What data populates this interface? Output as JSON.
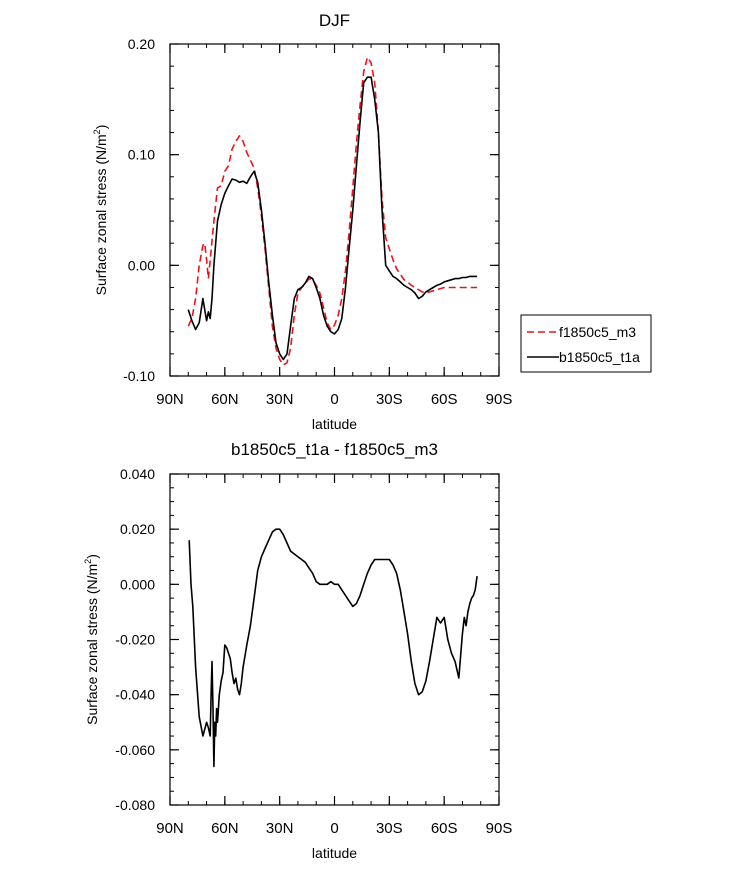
{
  "chart_data": [
    {
      "type": "line",
      "title": "DJF",
      "xlabel": "latitude",
      "ylabel": "Surface zonal stress (N/m",
      "ylabel_sup": "2",
      "ylabel_close": ")",
      "xlim": [
        90,
        -90
      ],
      "ylim": [
        -0.1,
        0.2
      ],
      "x_ticks": [
        90,
        60,
        30,
        0,
        -30,
        -60,
        -90
      ],
      "x_tick_labels": [
        "90N",
        "60N",
        "30N",
        "0",
        "30S",
        "60S",
        "90S"
      ],
      "y_ticks": [
        -0.1,
        0.0,
        0.1,
        0.2
      ],
      "y_tick_labels": [
        "-0.10",
        "0.00",
        "0.10",
        "0.20"
      ],
      "grid": false,
      "legend": "right",
      "series": [
        {
          "name": "f1850c5_m3",
          "color": "#e8141c",
          "dash": true,
          "x": [
            80,
            78,
            76,
            74,
            72,
            71,
            70,
            69,
            68,
            66,
            64,
            62,
            60,
            58,
            56,
            54,
            52,
            50,
            48,
            46,
            44,
            42,
            40,
            38,
            36,
            34,
            32,
            30,
            28,
            26,
            24,
            22,
            20,
            18,
            16,
            14,
            12,
            10,
            8,
            6,
            4,
            2,
            0,
            -2,
            -4,
            -6,
            -8,
            -10,
            -12,
            -14,
            -16,
            -18,
            -20,
            -22,
            -24,
            -26,
            -28,
            -30,
            -32,
            -34,
            -36,
            -38,
            -40,
            -42,
            -44,
            -46,
            -48,
            -50,
            -52,
            -54,
            -56,
            -58,
            -60,
            -62,
            -64,
            -66,
            -68,
            -70,
            -72,
            -74,
            -76,
            -78
          ],
          "values": [
            -0.055,
            -0.048,
            -0.03,
            0.0,
            0.018,
            0.02,
            0.005,
            -0.012,
            0.005,
            0.04,
            0.07,
            0.072,
            0.085,
            0.09,
            0.105,
            0.112,
            0.117,
            0.112,
            0.102,
            0.095,
            0.088,
            0.07,
            0.045,
            0.015,
            -0.02,
            -0.055,
            -0.075,
            -0.085,
            -0.09,
            -0.088,
            -0.075,
            -0.045,
            -0.025,
            -0.02,
            -0.017,
            -0.012,
            -0.013,
            -0.018,
            -0.025,
            -0.038,
            -0.052,
            -0.058,
            -0.054,
            -0.045,
            -0.03,
            -0.005,
            0.03,
            0.07,
            0.11,
            0.145,
            0.175,
            0.188,
            0.183,
            0.165,
            0.12,
            0.06,
            0.025,
            0.015,
            0.005,
            -0.003,
            -0.008,
            -0.013,
            -0.015,
            -0.018,
            -0.02,
            -0.022,
            -0.024,
            -0.025,
            -0.024,
            -0.023,
            -0.022,
            -0.021,
            -0.02,
            -0.02,
            -0.02,
            -0.02,
            -0.02,
            -0.02,
            -0.02,
            -0.02,
            -0.02,
            -0.02
          ]
        },
        {
          "name": "b1850c5_t1a",
          "color": "#000000",
          "dash": false,
          "x": [
            80,
            78,
            76,
            74,
            72,
            71,
            70,
            69,
            68,
            67,
            66,
            64,
            62,
            60,
            58,
            56,
            54,
            52,
            50,
            48,
            46,
            44,
            42,
            40,
            38,
            36,
            34,
            32,
            30,
            28,
            26,
            24,
            22,
            20,
            18,
            16,
            14,
            12,
            10,
            8,
            6,
            4,
            2,
            0,
            -2,
            -4,
            -6,
            -8,
            -10,
            -12,
            -14,
            -16,
            -18,
            -20,
            -22,
            -24,
            -26,
            -28,
            -30,
            -32,
            -34,
            -36,
            -38,
            -40,
            -42,
            -44,
            -46,
            -48,
            -50,
            -52,
            -54,
            -56,
            -58,
            -60,
            -62,
            -64,
            -66,
            -68,
            -70,
            -72,
            -74,
            -76,
            -78
          ],
          "values": [
            -0.04,
            -0.05,
            -0.058,
            -0.052,
            -0.03,
            -0.04,
            -0.05,
            -0.042,
            -0.048,
            -0.03,
            0.0,
            0.04,
            0.055,
            0.065,
            0.072,
            0.078,
            0.077,
            0.075,
            0.076,
            0.074,
            0.08,
            0.085,
            0.075,
            0.05,
            0.02,
            -0.015,
            -0.045,
            -0.07,
            -0.08,
            -0.085,
            -0.08,
            -0.055,
            -0.03,
            -0.022,
            -0.02,
            -0.016,
            -0.01,
            -0.012,
            -0.02,
            -0.03,
            -0.045,
            -0.055,
            -0.06,
            -0.062,
            -0.058,
            -0.048,
            -0.02,
            0.015,
            0.05,
            0.09,
            0.13,
            0.165,
            0.17,
            0.17,
            0.15,
            0.12,
            0.05,
            0.0,
            -0.005,
            -0.01,
            -0.012,
            -0.015,
            -0.018,
            -0.02,
            -0.022,
            -0.025,
            -0.03,
            -0.028,
            -0.024,
            -0.022,
            -0.02,
            -0.018,
            -0.017,
            -0.015,
            -0.014,
            -0.013,
            -0.012,
            -0.012,
            -0.011,
            -0.011,
            -0.01,
            -0.01,
            -0.01
          ]
        }
      ]
    },
    {
      "type": "line",
      "title": "b1850c5_t1a - f1850c5_m3",
      "xlabel": "latitude",
      "ylabel": "Surface zonal stress (N/m",
      "ylabel_sup": "2",
      "ylabel_close": ")",
      "xlim": [
        90,
        -90
      ],
      "ylim": [
        -0.08,
        0.04
      ],
      "x_ticks": [
        90,
        60,
        30,
        0,
        -30,
        -60,
        -90
      ],
      "x_tick_labels": [
        "90N",
        "60N",
        "30N",
        "0",
        "30S",
        "60S",
        "90S"
      ],
      "y_ticks": [
        -0.08,
        -0.06,
        -0.04,
        -0.02,
        0.0,
        0.02,
        0.04
      ],
      "y_tick_labels": [
        "-0.080",
        "-0.060",
        "-0.040",
        "-0.020",
        "0.000",
        "0.020",
        "0.040"
      ],
      "grid": false,
      "series": [
        {
          "color": "#000000",
          "dash": false,
          "x": [
            79.5,
            78.5,
            77.5,
            76,
            74,
            72,
            70,
            69,
            68,
            67.5,
            67,
            66.5,
            66,
            65.5,
            65,
            64.5,
            64,
            63,
            62,
            61,
            60,
            59,
            58,
            57,
            56,
            55,
            54,
            53,
            52,
            51,
            50,
            48,
            46,
            44,
            42,
            40,
            38,
            36,
            34,
            32,
            31,
            30,
            28,
            26,
            24,
            22,
            20,
            18,
            16,
            14,
            12,
            10,
            8,
            6,
            4,
            2,
            0,
            -2,
            -4,
            -6,
            -8,
            -10,
            -12,
            -14,
            -16,
            -18,
            -20,
            -22,
            -24,
            -26,
            -28,
            -30,
            -32,
            -34,
            -36,
            -38,
            -40,
            -42,
            -44,
            -46,
            -48,
            -50,
            -52,
            -54,
            -56,
            -58,
            -60,
            -62,
            -64,
            -66,
            -68,
            -70,
            -71,
            -72,
            -73,
            -74,
            -75,
            -76,
            -77,
            -78
          ],
          "values": [
            0.016,
            0.0,
            -0.008,
            -0.03,
            -0.048,
            -0.055,
            -0.05,
            -0.052,
            -0.055,
            -0.04,
            -0.028,
            -0.045,
            -0.066,
            -0.05,
            -0.055,
            -0.045,
            -0.05,
            -0.04,
            -0.035,
            -0.032,
            -0.022,
            -0.023,
            -0.025,
            -0.027,
            -0.032,
            -0.036,
            -0.034,
            -0.038,
            -0.04,
            -0.036,
            -0.03,
            -0.022,
            -0.015,
            -0.005,
            0.005,
            0.01,
            0.013,
            0.016,
            0.019,
            0.02,
            0.02,
            0.02,
            0.018,
            0.015,
            0.012,
            0.011,
            0.01,
            0.009,
            0.008,
            0.006,
            0.004,
            0.001,
            0.0,
            0.0,
            0.0,
            0.001,
            0.0,
            0.0,
            -0.002,
            -0.004,
            -0.006,
            -0.008,
            -0.007,
            -0.004,
            0.0,
            0.004,
            0.007,
            0.009,
            0.009,
            0.009,
            0.009,
            0.009,
            0.007,
            0.004,
            -0.002,
            -0.01,
            -0.018,
            -0.028,
            -0.036,
            -0.04,
            -0.039,
            -0.035,
            -0.028,
            -0.02,
            -0.012,
            -0.014,
            -0.012,
            -0.02,
            -0.025,
            -0.028,
            -0.034,
            -0.018,
            -0.012,
            -0.015,
            -0.01,
            -0.007,
            -0.005,
            -0.004,
            -0.002,
            0.003
          ]
        }
      ]
    }
  ]
}
